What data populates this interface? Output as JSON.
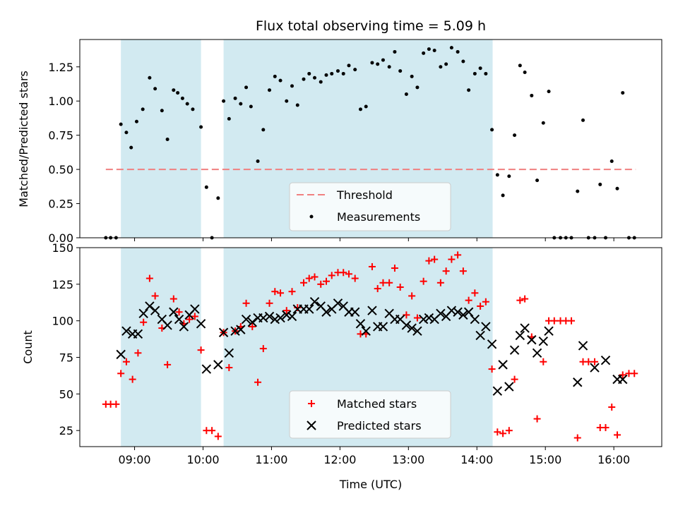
{
  "figure": {
    "title": "Flux total observing time = 5.09 h",
    "xlabel": "Time (UTC)",
    "x_ticks": [
      "09:00",
      "10:00",
      "11:00",
      "12:00",
      "13:00",
      "14:00",
      "15:00",
      "16:00"
    ],
    "x_tick_values": [
      9,
      10,
      11,
      12,
      13,
      14,
      15,
      16
    ],
    "xlim": [
      8.2,
      16.7
    ],
    "shaded_intervals": [
      [
        8.8,
        9.97
      ],
      [
        10.3,
        14.23
      ]
    ],
    "colors": {
      "shade": "#add8e6",
      "threshold": "#f08080",
      "matched": "#ff0000",
      "predicted": "#000000",
      "measurement": "#000000"
    }
  },
  "chart_data": [
    {
      "type": "scatter",
      "ylabel": "Matched/Predicted stars",
      "ylim": [
        0,
        1.45
      ],
      "y_ticks": [
        "0.00",
        "0.25",
        "0.50",
        "0.75",
        "1.00",
        "1.25"
      ],
      "y_tick_values": [
        0,
        0.25,
        0.5,
        0.75,
        1.0,
        1.25
      ],
      "legend_placement": "bottom-center",
      "threshold": {
        "name": "Threshold",
        "value": 0.5,
        "x_range": [
          8.58,
          16.32
        ]
      },
      "series": [
        {
          "name": "Measurements",
          "x": [
            8.58,
            8.65,
            8.73,
            8.8,
            8.88,
            8.95,
            9.03,
            9.12,
            9.22,
            9.3,
            9.4,
            9.48,
            9.57,
            9.63,
            9.7,
            9.77,
            9.85,
            9.97,
            10.05,
            10.13,
            10.22,
            10.3,
            10.38,
            10.47,
            10.55,
            10.63,
            10.7,
            10.8,
            10.88,
            10.97,
            11.05,
            11.13,
            11.22,
            11.3,
            11.38,
            11.47,
            11.55,
            11.63,
            11.72,
            11.8,
            11.88,
            11.97,
            12.05,
            12.13,
            12.22,
            12.3,
            12.38,
            12.47,
            12.55,
            12.63,
            12.72,
            12.8,
            12.88,
            12.97,
            13.05,
            13.13,
            13.22,
            13.3,
            13.38,
            13.47,
            13.55,
            13.63,
            13.72,
            13.8,
            13.88,
            13.97,
            14.05,
            14.13,
            14.22,
            14.3,
            14.38,
            14.47,
            14.55,
            14.63,
            14.7,
            14.8,
            14.88,
            14.97,
            15.05,
            15.13,
            15.22,
            15.3,
            15.38,
            15.47,
            15.55,
            15.63,
            15.72,
            15.8,
            15.88,
            15.97,
            16.05,
            16.13,
            16.22,
            16.3
          ],
          "y": [
            0.0,
            0.0,
            0.0,
            0.83,
            0.77,
            0.66,
            0.85,
            0.94,
            1.17,
            1.09,
            0.93,
            0.72,
            1.08,
            1.06,
            1.02,
            0.98,
            0.94,
            0.81,
            0.37,
            0.0,
            0.29,
            1.0,
            0.87,
            1.02,
            0.98,
            1.1,
            0.96,
            0.56,
            0.79,
            1.08,
            1.18,
            1.15,
            1.0,
            1.11,
            0.97,
            1.16,
            1.2,
            1.17,
            1.14,
            1.19,
            1.2,
            1.22,
            1.2,
            1.26,
            1.23,
            0.94,
            0.96,
            1.28,
            1.27,
            1.3,
            1.25,
            1.36,
            1.22,
            1.05,
            1.18,
            1.1,
            1.35,
            1.38,
            1.37,
            1.25,
            1.27,
            1.39,
            1.36,
            1.29,
            1.08,
            1.2,
            1.24,
            1.2,
            0.79,
            0.46,
            0.31,
            0.45,
            0.75,
            1.26,
            1.21,
            1.04,
            0.42,
            0.84,
            1.07,
            0.0,
            0.0,
            0.0,
            0.0,
            0.34,
            0.86,
            0.0,
            0.0,
            0.39,
            0.0,
            0.56,
            0.36,
            1.06,
            0.0,
            0.0
          ]
        }
      ]
    },
    {
      "type": "scatter",
      "ylabel": "Count",
      "ylim": [
        14,
        150
      ],
      "y_ticks": [
        "25",
        "50",
        "75",
        "100",
        "125",
        "150"
      ],
      "y_tick_values": [
        25,
        50,
        75,
        100,
        125,
        150
      ],
      "legend_placement": "bottom-center",
      "series": [
        {
          "name": "Matched stars",
          "marker": "plus",
          "x": [
            8.58,
            8.65,
            8.73,
            8.8,
            8.88,
            8.97,
            9.05,
            9.13,
            9.22,
            9.3,
            9.4,
            9.48,
            9.57,
            9.65,
            9.72,
            9.8,
            9.88,
            9.97,
            10.05,
            10.13,
            10.22,
            10.3,
            10.38,
            10.47,
            10.55,
            10.63,
            10.72,
            10.8,
            10.88,
            10.97,
            11.05,
            11.13,
            11.22,
            11.3,
            11.38,
            11.47,
            11.55,
            11.63,
            11.72,
            11.8,
            11.88,
            11.97,
            12.05,
            12.13,
            12.22,
            12.3,
            12.38,
            12.47,
            12.55,
            12.63,
            12.72,
            12.8,
            12.88,
            12.97,
            13.05,
            13.13,
            13.22,
            13.3,
            13.38,
            13.47,
            13.55,
            13.63,
            13.72,
            13.8,
            13.88,
            13.97,
            14.05,
            14.13,
            14.22,
            14.3,
            14.38,
            14.47,
            14.55,
            14.63,
            14.7,
            14.8,
            14.88,
            14.97,
            15.05,
            15.13,
            15.22,
            15.3,
            15.38,
            15.47,
            15.55,
            15.63,
            15.72,
            15.8,
            15.88,
            15.97,
            16.05,
            16.13,
            16.22,
            16.3
          ],
          "y": [
            43,
            43,
            43,
            64,
            72,
            60,
            78,
            99,
            129,
            117,
            95,
            70,
            115,
            106,
            98,
            101,
            103,
            80,
            25,
            25,
            21,
            92,
            68,
            93,
            96,
            112,
            96,
            58,
            81,
            112,
            120,
            119,
            107,
            120,
            109,
            126,
            129,
            130,
            125,
            127,
            131,
            133,
            133,
            132,
            129,
            91,
            91,
            137,
            122,
            126,
            126,
            136,
            123,
            104,
            117,
            102,
            127,
            141,
            142,
            126,
            134,
            142,
            145,
            134,
            114,
            119,
            110,
            113,
            67,
            24,
            23,
            25,
            60,
            114,
            115,
            89,
            33,
            72,
            100,
            100,
            100,
            100,
            100,
            20,
            72,
            72,
            72,
            27,
            27,
            41,
            22,
            63,
            64,
            64
          ]
        },
        {
          "name": "Predicted stars",
          "marker": "x",
          "x": [
            8.8,
            8.88,
            8.97,
            9.05,
            9.13,
            9.22,
            9.3,
            9.4,
            9.48,
            9.57,
            9.65,
            9.72,
            9.8,
            9.88,
            9.97,
            10.05,
            10.22,
            10.3,
            10.38,
            10.47,
            10.55,
            10.63,
            10.72,
            10.8,
            10.88,
            10.97,
            11.05,
            11.13,
            11.22,
            11.3,
            11.38,
            11.47,
            11.55,
            11.63,
            11.72,
            11.8,
            11.88,
            11.97,
            12.05,
            12.13,
            12.22,
            12.3,
            12.38,
            12.47,
            12.55,
            12.63,
            12.72,
            12.8,
            12.88,
            12.97,
            13.05,
            13.13,
            13.22,
            13.3,
            13.38,
            13.47,
            13.55,
            13.63,
            13.72,
            13.8,
            13.88,
            13.97,
            14.05,
            14.13,
            14.22,
            14.3,
            14.38,
            14.47,
            14.55,
            14.63,
            14.7,
            14.8,
            14.88,
            14.97,
            15.05,
            15.47,
            15.55,
            15.72,
            15.88,
            16.05,
            16.13
          ],
          "y": [
            77,
            93,
            91,
            91,
            105,
            110,
            107,
            101,
            97,
            106,
            101,
            96,
            104,
            108,
            98,
            67,
            70,
            92,
            78,
            93,
            94,
            101,
            99,
            102,
            102,
            103,
            101,
            102,
            104,
            103,
            108,
            108,
            108,
            113,
            110,
            106,
            108,
            112,
            110,
            106,
            106,
            98,
            93,
            107,
            96,
            96,
            105,
            101,
            101,
            97,
            95,
            93,
            101,
            102,
            101,
            105,
            103,
            107,
            106,
            104,
            106,
            101,
            90,
            96,
            84,
            52,
            70,
            55,
            80,
            90,
            95,
            87,
            78,
            86,
            93,
            58,
            83,
            68,
            73,
            60,
            60
          ]
        }
      ]
    }
  ]
}
